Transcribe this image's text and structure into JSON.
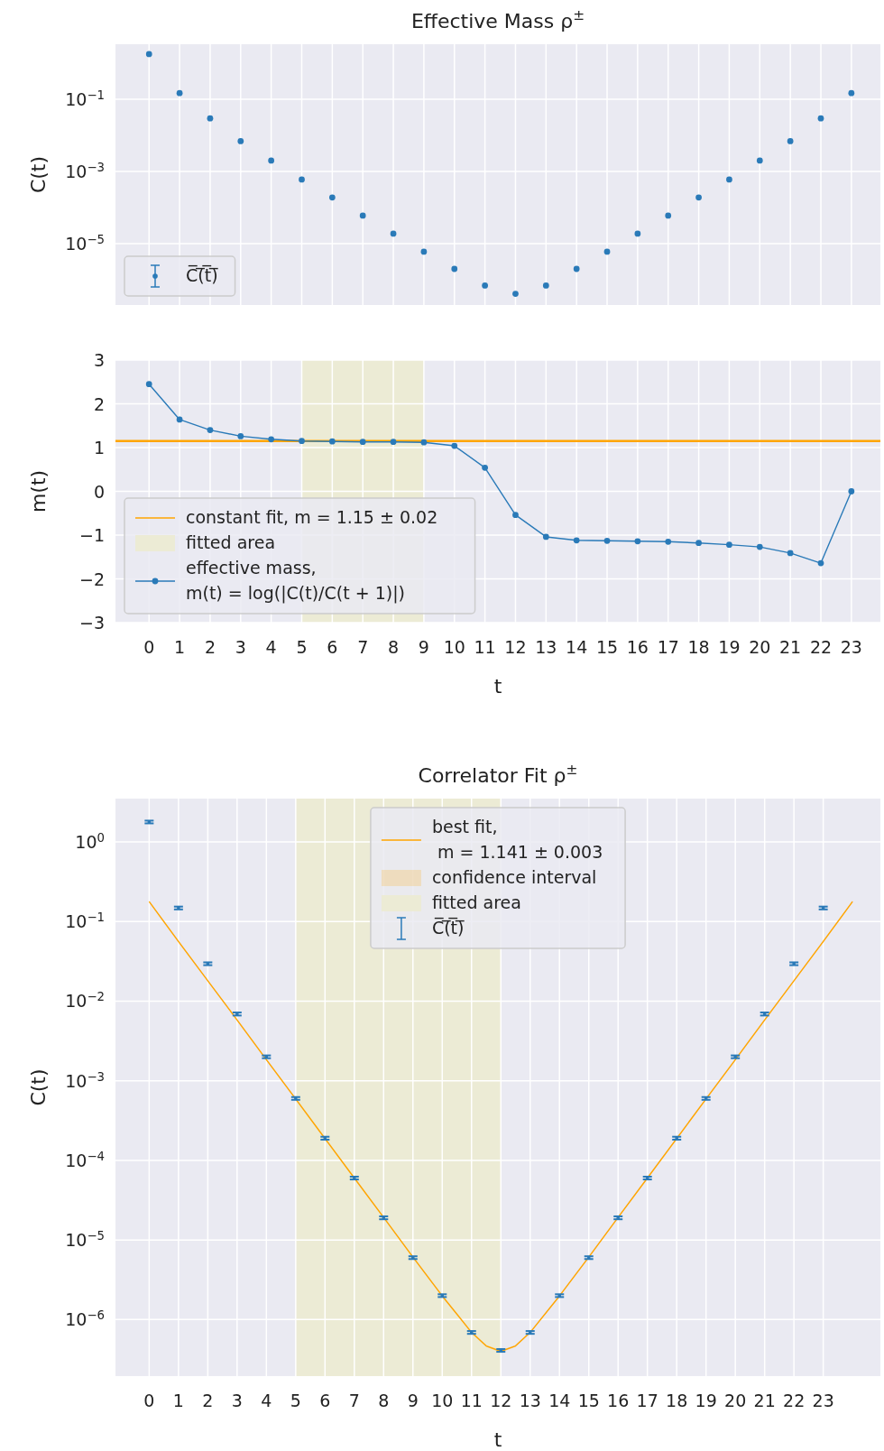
{
  "chart_data": [
    {
      "type": "scatter",
      "title": "Effective Mass ρ$^{±}$",
      "ylabel": "C(t)",
      "log": true,
      "xlim": [
        -1.1,
        23.95
      ],
      "xticks": [
        0,
        1,
        2,
        3,
        4,
        5,
        6,
        7,
        8,
        9,
        10,
        11,
        12,
        13,
        14,
        15,
        16,
        17,
        18,
        19,
        20,
        21,
        22,
        23
      ],
      "ylim": [
        2e-07,
        3.35
      ],
      "yticks": [
        {
          "value": 0.1,
          "label": "10$^{−1}$"
        },
        {
          "value": 0.001,
          "label": "10$^{−3}$"
        },
        {
          "value": 1e-05,
          "label": "10$^{−5}$"
        }
      ],
      "tick_labels": "y",
      "grid": true,
      "legend": "bottom left",
      "marker": "circle",
      "series": [
        {
          "name": "C̅(̅t̅)̅",
          "color": "#2a7ab8",
          "x": [
            0,
            1,
            2,
            3,
            4,
            5,
            6,
            7,
            8,
            9,
            10,
            11,
            12,
            13,
            14,
            15,
            16,
            17,
            18,
            19,
            20,
            21,
            22,
            23
          ],
          "values": [
            1.78,
            0.148,
            0.0295,
            0.0069,
            0.002,
            0.0006,
            0.00019,
            6e-05,
            1.9e-05,
            6e-06,
            2e-06,
            6.9e-07,
            4.1e-07,
            6.9e-07,
            2e-06,
            6e-06,
            1.9e-05,
            6e-05,
            0.00019,
            0.0006,
            0.002,
            0.0069,
            0.0295,
            0.148
          ]
        }
      ]
    },
    {
      "type": "line",
      "xlabel": "t",
      "ylabel": "m(t)",
      "xlim": [
        -1.1,
        23.95
      ],
      "xticks": [
        0,
        1,
        2,
        3,
        4,
        5,
        6,
        7,
        8,
        9,
        10,
        11,
        12,
        13,
        14,
        15,
        16,
        17,
        18,
        19,
        20,
        21,
        22,
        23
      ],
      "ylim": [
        -3,
        3
      ],
      "yticks": [
        {
          "value": -3,
          "label": "−3"
        },
        {
          "value": -2,
          "label": "−2"
        },
        {
          "value": -1,
          "label": "−1"
        },
        0,
        1,
        2,
        3
      ],
      "grid": true,
      "legend": "bottom left",
      "marker": "circle",
      "ref_lines": [
        {
          "axis": "y",
          "value": 1.15,
          "label": "constant fit, m = 1.15 ± 0.02",
          "color": "#ffa500"
        }
      ],
      "bands": [
        {
          "axis": "x",
          "from": 5,
          "to": 9,
          "label": "fitted area",
          "color": "#ecebd5"
        }
      ],
      "series": [
        {
          "name": "effective mass,\nm(t) = log(|C(t)/C(t + 1)|)",
          "color": "#2a7ab8",
          "x": [
            0,
            1,
            2,
            3,
            4,
            5,
            6,
            7,
            8,
            9,
            10,
            11,
            12,
            13,
            14,
            15,
            16,
            17,
            18,
            19,
            20,
            21,
            22,
            23
          ],
          "values": [
            2.45,
            1.64,
            1.4,
            1.26,
            1.19,
            1.15,
            1.14,
            1.13,
            1.13,
            1.12,
            1.04,
            0.54,
            -0.54,
            -1.04,
            -1.12,
            -1.13,
            -1.14,
            -1.15,
            -1.18,
            -1.22,
            -1.27,
            -1.41,
            -1.64,
            0
          ]
        }
      ]
    },
    {
      "type": "scatter",
      "title": "Correlator Fit ρ$^{±}$",
      "xlabel": "t",
      "ylabel": "C(t)",
      "log": true,
      "xlim": [
        -1.15,
        24.95
      ],
      "xticks": [
        0,
        1,
        2,
        3,
        4,
        5,
        6,
        7,
        8,
        9,
        10,
        11,
        12,
        13,
        14,
        15,
        16,
        17,
        18,
        19,
        20,
        21,
        22,
        23
      ],
      "ylim": [
        1.95e-07,
        3.5
      ],
      "yticks": [
        {
          "value": 1,
          "label": "10$^{0}$"
        },
        {
          "value": 0.1,
          "label": "10$^{−1}$"
        },
        {
          "value": 0.01,
          "label": "10$^{−2}$"
        },
        {
          "value": 0.001,
          "label": "10$^{−3}$"
        },
        {
          "value": 0.0001,
          "label": "10$^{−4}$"
        },
        {
          "value": 1e-05,
          "label": "10$^{−5}$"
        },
        {
          "value": 1e-06,
          "label": "10$^{−6}$"
        }
      ],
      "grid": true,
      "legend": "top",
      "annotations": [
        "confidence interval"
      ],
      "bands": [
        {
          "axis": "x",
          "from": 5,
          "to": 12,
          "label": "fitted area",
          "color": "#ecebd5"
        }
      ],
      "series": [
        {
          "type": "line",
          "name": "best fit,\n m = 1.141 ± 0.003",
          "marker": "none",
          "color": "#ffa500",
          "x": [
            0,
            1,
            2,
            3,
            4,
            5,
            6,
            7,
            8,
            9,
            10,
            11,
            11.5,
            12,
            12.5,
            13,
            14,
            15,
            16,
            17,
            18,
            19,
            20,
            21,
            22,
            23,
            24
          ],
          "values": [
            0.178,
            0.056,
            0.018,
            0.0058,
            0.00184,
            0.00059,
            0.000188,
            6e-05,
            1.92e-05,
            6.1e-06,
            1.98e-06,
            6.9e-07,
            4.67e-07,
            4e-07,
            4.67e-07,
            6.9e-07,
            1.98e-06,
            6.1e-06,
            1.92e-05,
            6e-05,
            0.000188,
            0.00059,
            0.00184,
            0.0058,
            0.018,
            0.056,
            0.178
          ],
          "lower": [
            0.173,
            0.054,
            0.0175,
            0.0056,
            0.00178,
            0.00057,
            0.000182,
            5.8e-05,
            1.86e-05,
            5.9e-06,
            1.92e-06,
            6.7e-07,
            4.53e-07,
            3.88e-07,
            4.53e-07,
            6.7e-07,
            1.92e-06,
            5.9e-06,
            1.86e-05,
            5.8e-05,
            0.000182,
            0.00057,
            0.00178,
            0.0056,
            0.0175,
            0.054,
            0.173
          ],
          "upper": [
            0.183,
            0.058,
            0.0185,
            0.006,
            0.0019,
            0.00061,
            0.000194,
            6.2e-05,
            1.98e-05,
            6.3e-06,
            2.04e-06,
            7.1e-07,
            4.81e-07,
            4.12e-07,
            4.81e-07,
            7.1e-07,
            2.04e-06,
            6.3e-06,
            1.98e-05,
            6.2e-05,
            0.000194,
            0.00061,
            0.0019,
            0.006,
            0.0185,
            0.058,
            0.183
          ]
        },
        {
          "name": "C̅(̅t̅)̅",
          "marker": "square",
          "color": "#2a7ab8",
          "x": [
            0,
            1,
            2,
            3,
            4,
            5,
            6,
            7,
            8,
            9,
            10,
            11,
            12,
            13,
            14,
            15,
            16,
            17,
            18,
            19,
            20,
            21,
            22,
            23
          ],
          "values": [
            1.78,
            0.148,
            0.0295,
            0.0069,
            0.002,
            0.0006,
            0.00019,
            6e-05,
            1.9e-05,
            6e-06,
            2e-06,
            6.9e-07,
            4.1e-07,
            6.9e-07,
            2e-06,
            6e-06,
            1.9e-05,
            6e-05,
            0.00019,
            0.0006,
            0.002,
            0.0069,
            0.0295,
            0.148
          ],
          "errors": [
            0.07,
            0.006,
            0.0012,
            0.0003,
            8e-05,
            2.4e-05,
            8e-06,
            2.4e-06,
            8e-07,
            2.4e-07,
            8e-08,
            2.8e-08,
            1.6e-08,
            2.8e-08,
            8e-08,
            2.4e-07,
            8e-07,
            2.4e-06,
            8e-06,
            2.4e-05,
            8e-05,
            0.0003,
            0.0012,
            0.006
          ]
        }
      ]
    }
  ]
}
